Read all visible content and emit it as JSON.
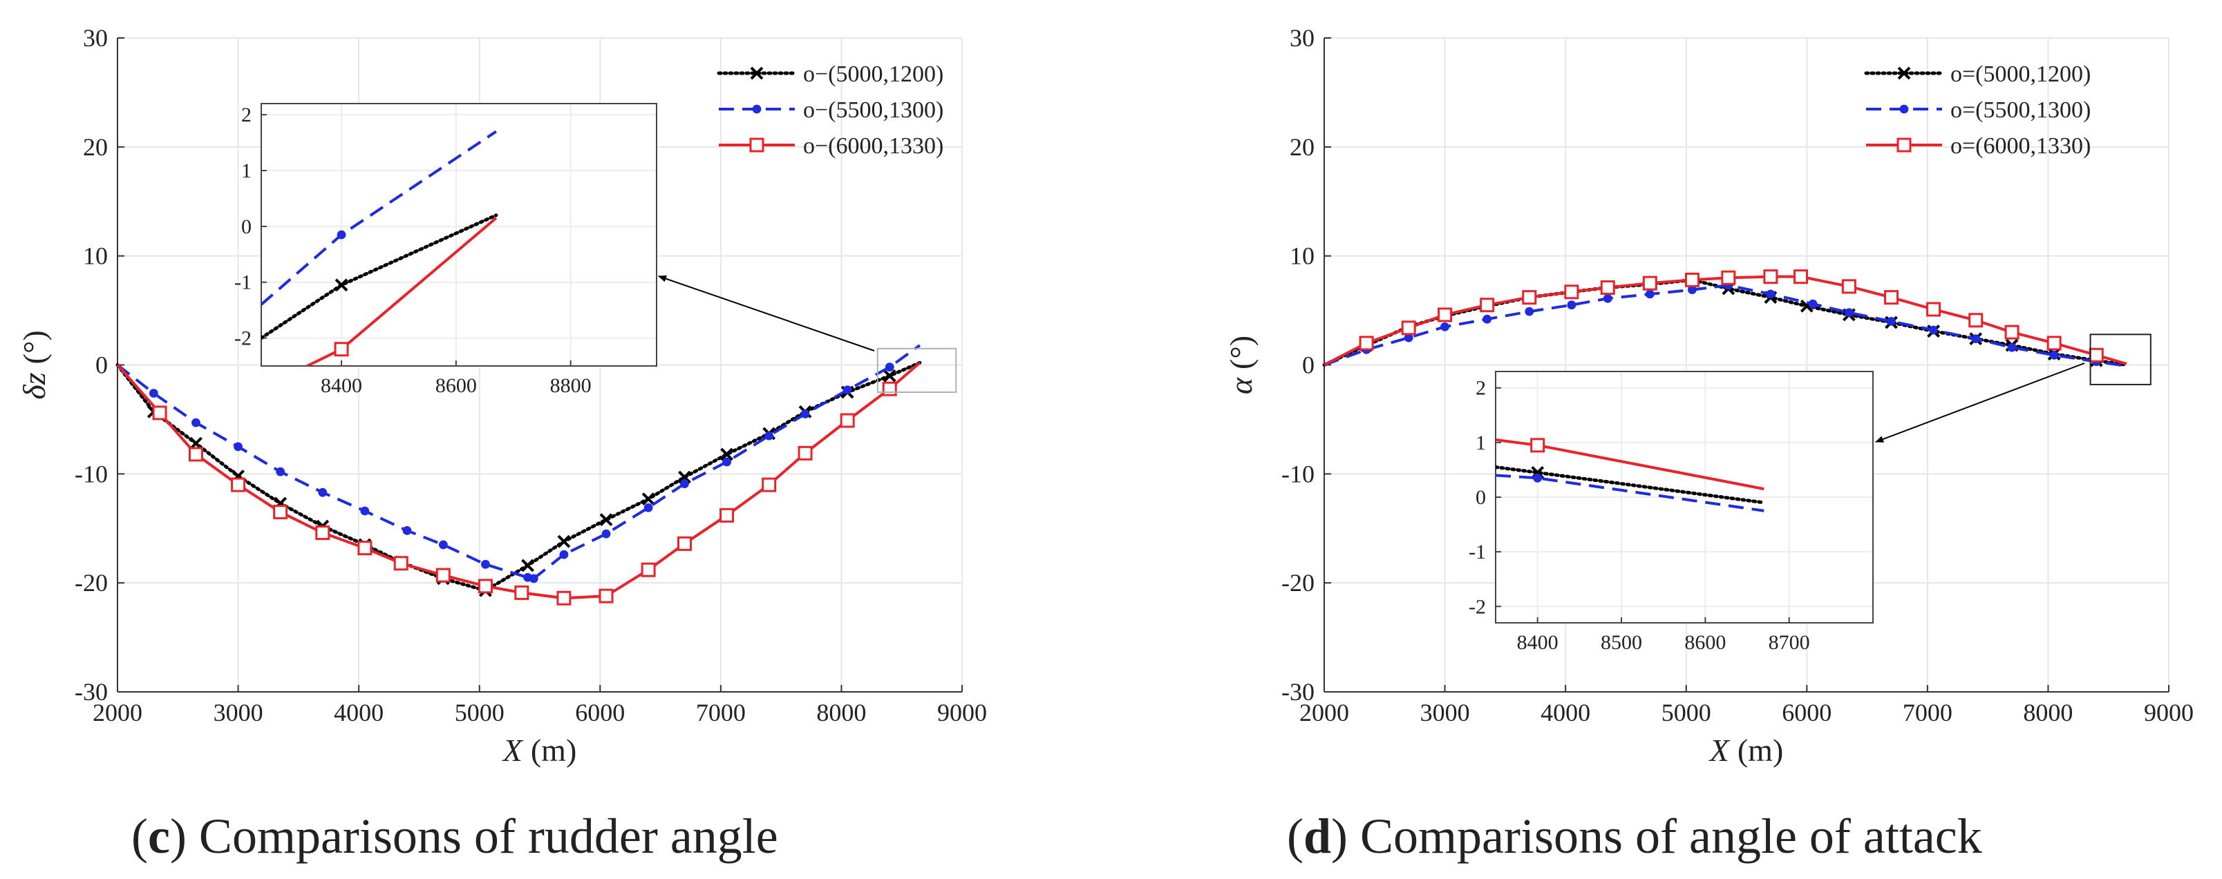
{
  "chart_data": [
    {
      "type": "line",
      "panel_letter": "c",
      "caption": ") Comparisons of rudder angle",
      "xlabel": "X",
      "xunit": "(m)",
      "ylabel": "δz",
      "yunit": "(°)",
      "xlim": [
        2000,
        9000
      ],
      "ylim": [
        -30,
        30
      ],
      "xticks": [
        2000,
        3000,
        4000,
        5000,
        6000,
        7000,
        8000,
        9000
      ],
      "yticks": [
        -30,
        -20,
        -10,
        0,
        10,
        20,
        30
      ],
      "grid": true,
      "legend_position": "top-right",
      "series": [
        {
          "name": "o−(5000,1200)",
          "color": "#000000",
          "style": "dotted",
          "marker": "x",
          "x": [
            2000,
            2300,
            2650,
            3000,
            3350,
            3700,
            4050,
            4350,
            4700,
            5050,
            5400,
            5700,
            6050,
            6400,
            6700,
            7050,
            7400,
            7700,
            8050,
            8400,
            8650
          ],
          "y": [
            0,
            -4.3,
            -7.2,
            -10.2,
            -12.7,
            -14.8,
            -16.5,
            -18.1,
            -19.6,
            -20.7,
            -18.4,
            -16.2,
            -14.2,
            -12.3,
            -10.3,
            -8.2,
            -6.3,
            -4.3,
            -2.5,
            -1.0,
            0.2
          ]
        },
        {
          "name": "o−(5500,1300)",
          "color": "#1f2be0",
          "style": "dashed",
          "marker": "dot",
          "x": [
            2000,
            2300,
            2650,
            3000,
            3350,
            3700,
            4050,
            4400,
            4700,
            5050,
            5400,
            5450,
            5700,
            6050,
            6400,
            6700,
            7050,
            7400,
            7700,
            8050,
            8400,
            8650
          ],
          "y": [
            0,
            -2.6,
            -5.3,
            -7.5,
            -9.8,
            -11.7,
            -13.4,
            -15.2,
            -16.5,
            -18.3,
            -19.5,
            -19.6,
            -17.4,
            -15.5,
            -13.1,
            -10.9,
            -8.9,
            -6.5,
            -4.5,
            -2.3,
            -0.2,
            1.8
          ]
        },
        {
          "name": "o−(6000,1330)",
          "color": "#e8232a",
          "style": "solid",
          "marker": "square",
          "x": [
            2000,
            2350,
            2650,
            3000,
            3350,
            3700,
            4050,
            4350,
            4700,
            5050,
            5350,
            5700,
            6050,
            6400,
            6700,
            7050,
            7400,
            7700,
            8050,
            8400,
            8650
          ],
          "y": [
            0,
            -4.4,
            -8.2,
            -11.0,
            -13.5,
            -15.4,
            -16.8,
            -18.2,
            -19.3,
            -20.3,
            -20.9,
            -21.4,
            -21.2,
            -18.8,
            -16.4,
            -13.8,
            -11.0,
            -8.1,
            -5.1,
            -2.2,
            0.2
          ]
        }
      ],
      "inset": {
        "xlim": [
          8260,
          8950
        ],
        "ylim": [
          -2.5,
          2.2
        ],
        "xticks": [
          8400,
          8600,
          8800
        ],
        "yticks": [
          -2,
          -1,
          0,
          1,
          2
        ],
        "series": [
          {
            "name": "o−(5000,1200)",
            "x": [
              8260,
              8400,
              8670
            ],
            "y": [
              -2.0,
              -1.05,
              0.2
            ]
          },
          {
            "name": "o−(5500,1300)",
            "x": [
              8260,
              8400,
              8670
            ],
            "y": [
              -1.4,
              -0.15,
              1.7
            ]
          },
          {
            "name": "o−(6000,1330)",
            "x": [
              8340,
              8400,
              8670
            ],
            "y": [
              -2.5,
              -2.2,
              0.15
            ]
          }
        ]
      }
    },
    {
      "type": "line",
      "panel_letter": "d",
      "caption": ") Comparisons of angle of attack",
      "xlabel": "X",
      "xunit": "(m)",
      "ylabel": "α",
      "yunit": "(°)",
      "xlim": [
        2000,
        9000
      ],
      "ylim": [
        -30,
        30
      ],
      "xticks": [
        2000,
        3000,
        4000,
        5000,
        6000,
        7000,
        8000,
        9000
      ],
      "yticks": [
        -30,
        -20,
        -10,
        0,
        10,
        20,
        30
      ],
      "grid": true,
      "legend_position": "top-right",
      "series": [
        {
          "name": "o=(5000,1200)",
          "color": "#000000",
          "style": "dotted",
          "marker": "x",
          "x": [
            2000,
            2350,
            2700,
            3000,
            3350,
            3700,
            4050,
            4350,
            4700,
            5050,
            5350,
            5700,
            6000,
            6350,
            6700,
            7050,
            7400,
            7700,
            8050,
            8400,
            8650
          ],
          "y": [
            0,
            1.8,
            3.5,
            4.5,
            5.4,
            6.2,
            6.7,
            7.1,
            7.4,
            7.8,
            7.0,
            6.2,
            5.4,
            4.6,
            3.9,
            3.1,
            2.4,
            1.8,
            1.0,
            0.4,
            0
          ]
        },
        {
          "name": "o=(5500,1300)",
          "color": "#1f2be0",
          "style": "dashed",
          "marker": "dot",
          "x": [
            2000,
            2350,
            2700,
            3000,
            3350,
            3700,
            4050,
            4350,
            4700,
            5050,
            5350,
            5700,
            6050,
            6350,
            6700,
            7050,
            7400,
            7700,
            8050,
            8400,
            8650
          ],
          "y": [
            0,
            1.4,
            2.5,
            3.5,
            4.2,
            4.9,
            5.5,
            6.1,
            6.5,
            6.9,
            7.3,
            6.5,
            5.6,
            4.8,
            4.0,
            3.2,
            2.4,
            1.6,
            0.9,
            0.3,
            -0.1
          ]
        },
        {
          "name": "o=(6000,1330)",
          "color": "#e8232a",
          "style": "solid",
          "marker": "square",
          "x": [
            2000,
            2350,
            2700,
            3000,
            3350,
            3700,
            4050,
            4350,
            4700,
            5050,
            5350,
            5700,
            5950,
            6350,
            6700,
            7050,
            7400,
            7700,
            8050,
            8400,
            8650
          ],
          "y": [
            0,
            2.0,
            3.4,
            4.6,
            5.5,
            6.2,
            6.7,
            7.1,
            7.5,
            7.8,
            8.0,
            8.1,
            8.1,
            7.2,
            6.2,
            5.1,
            4.1,
            3.0,
            2.0,
            0.9,
            0.1
          ]
        }
      ],
      "inset": {
        "xlim": [
          8350,
          8800
        ],
        "ylim": [
          -2.3,
          2.3
        ],
        "xticks": [
          8400,
          8500,
          8600,
          8700
        ],
        "yticks": [
          -2,
          -1,
          0,
          1,
          2
        ],
        "series": [
          {
            "name": "o=(5000,1200)",
            "x": [
              8350,
              8400,
              8670
            ],
            "y": [
              0.55,
              0.45,
              -0.1
            ]
          },
          {
            "name": "o=(5500,1300)",
            "x": [
              8350,
              8400,
              8670
            ],
            "y": [
              0.4,
              0.35,
              -0.25
            ]
          },
          {
            "name": "o=(6000,1330)",
            "x": [
              8350,
              8400,
              8670
            ],
            "y": [
              1.05,
              0.95,
              0.15
            ]
          }
        ]
      }
    }
  ]
}
